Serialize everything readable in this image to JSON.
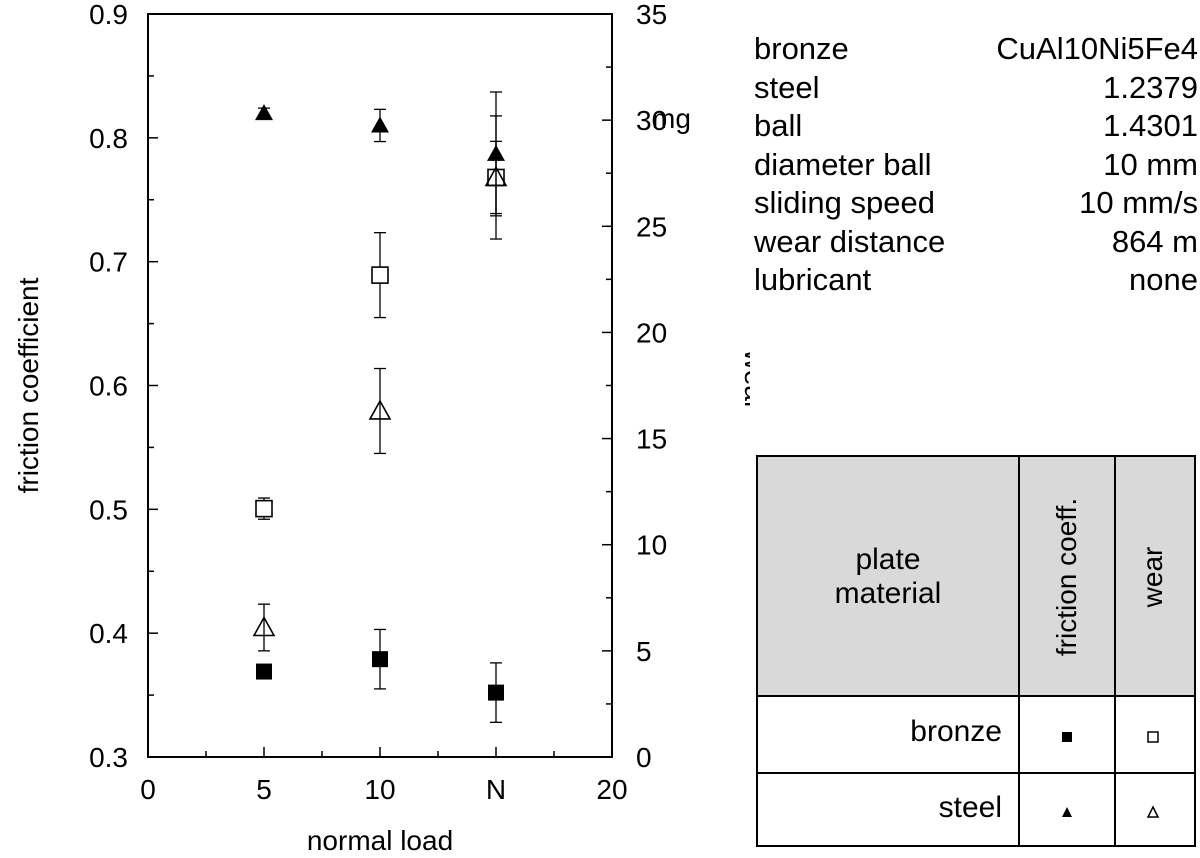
{
  "chart_data": {
    "type": "scatter",
    "title": "",
    "xlabel": "normal load",
    "ylabel": "friction coefficient",
    "y2label": "wear",
    "y2unit": "mg",
    "xlim": [
      0,
      20
    ],
    "ylim": [
      0.3,
      0.9
    ],
    "y2lim": [
      0,
      35
    ],
    "x_ticks": [
      "0",
      "5",
      "10",
      "N",
      "20"
    ],
    "y_ticks": [
      "0.3",
      "0.4",
      "0.5",
      "0.6",
      "0.7",
      "0.8",
      "0.9"
    ],
    "y2_ticks": [
      "0",
      "5",
      "10",
      "15",
      "20",
      "25",
      "30",
      "35"
    ],
    "grid": false,
    "series": [
      {
        "name": "bronze friction coeff.",
        "axis": "left",
        "marker": "square-filled",
        "points": [
          {
            "x": 5,
            "y": 0.369
          },
          {
            "x": 10,
            "y": 0.379,
            "err": 0.024
          },
          {
            "x": 15,
            "y": 0.352,
            "err": 0.024
          }
        ]
      },
      {
        "name": "bronze wear",
        "axis": "right",
        "marker": "square-open",
        "points": [
          {
            "x": 5,
            "y": 11.7,
            "err": 0.5
          },
          {
            "x": 10,
            "y": 22.7,
            "err": 2.0
          },
          {
            "x": 15,
            "y": 27.3,
            "err": 2.9
          }
        ]
      },
      {
        "name": "steel friction coeff.",
        "axis": "left",
        "marker": "triangle-filled",
        "points": [
          {
            "x": 5,
            "y": 0.82,
            "err": 0.004
          },
          {
            "x": 10,
            "y": 0.81,
            "err": 0.013
          },
          {
            "x": 15,
            "y": 0.787,
            "err": 0.05
          }
        ]
      },
      {
        "name": "steel wear",
        "axis": "right",
        "marker": "triangle-open",
        "points": [
          {
            "x": 5,
            "y": 6.1,
            "err": 1.1
          },
          {
            "x": 10,
            "y": 16.3,
            "err": 2.0
          },
          {
            "x": 15,
            "y": 27.3,
            "err": 1.7
          }
        ]
      }
    ]
  },
  "params": [
    {
      "label": "bronze",
      "value": "CuAl10Ni5Fe4"
    },
    {
      "label": "steel",
      "value": "1.2379"
    },
    {
      "label": "ball",
      "value": "1.4301"
    },
    {
      "label": "diameter ball",
      "value": "10 mm"
    },
    {
      "label": "sliding speed",
      "value": "10 mm/s"
    },
    {
      "label": "wear distance",
      "value": "864 m"
    },
    {
      "label": "lubricant",
      "value": "none"
    }
  ],
  "legend": {
    "plate_line1": "plate",
    "plate_line2": "material",
    "col_friction": "friction coeff.",
    "col_wear": "wear",
    "rows": [
      "bronze",
      "steel"
    ]
  }
}
